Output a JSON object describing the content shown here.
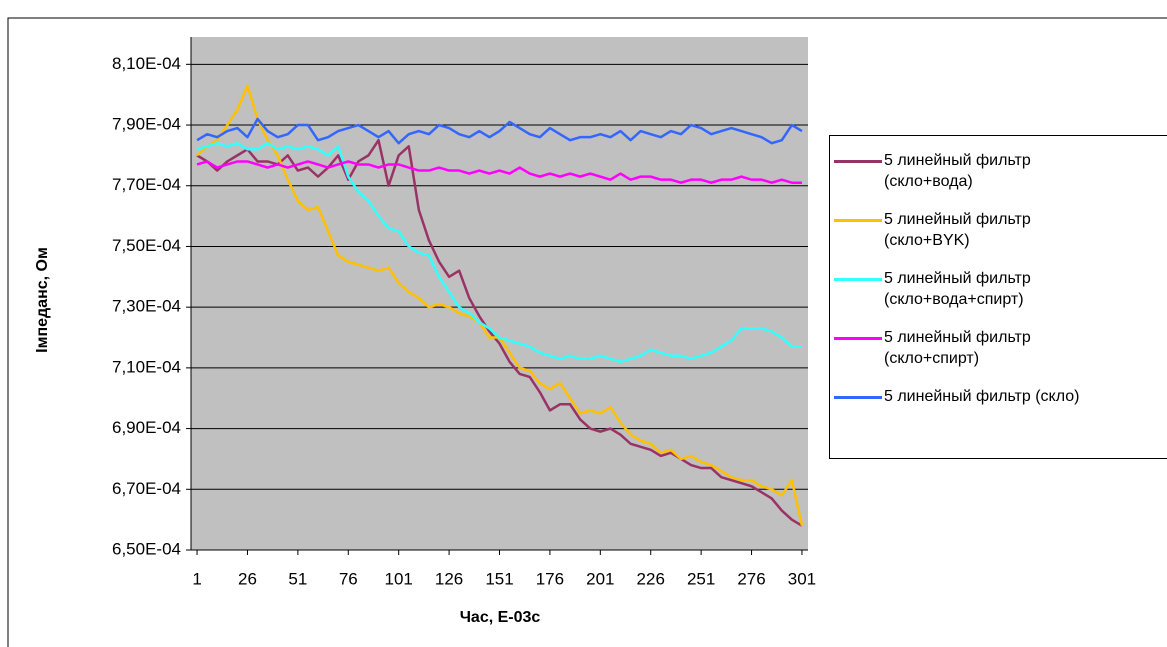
{
  "chart_data": {
    "type": "line",
    "x_label": "Час, Е-03с",
    "y_label": "Імпеданс, Ом",
    "x": [
      1,
      6,
      11,
      16,
      21,
      26,
      31,
      36,
      41,
      46,
      51,
      56,
      61,
      66,
      71,
      76,
      81,
      86,
      91,
      96,
      101,
      106,
      111,
      116,
      121,
      126,
      131,
      136,
      141,
      146,
      151,
      156,
      161,
      166,
      171,
      176,
      181,
      186,
      191,
      196,
      201,
      206,
      211,
      216,
      221,
      226,
      231,
      236,
      241,
      246,
      251,
      256,
      261,
      266,
      271,
      276,
      281,
      286,
      291,
      296,
      301
    ],
    "xlim": [
      -2,
      304
    ],
    "xticks": [
      1,
      26,
      51,
      76,
      101,
      126,
      151,
      176,
      201,
      226,
      251,
      276,
      301
    ],
    "ylim": [
      0.00065,
      0.000819
    ],
    "yticks": [
      {
        "value": 0.00065,
        "label": "6,50E-04"
      },
      {
        "value": 0.00067,
        "label": "6,70E-04"
      },
      {
        "value": 0.00069,
        "label": "6,90E-04"
      },
      {
        "value": 0.00071,
        "label": "7,10E-04"
      },
      {
        "value": 0.00073,
        "label": "7,30E-04"
      },
      {
        "value": 0.00075,
        "label": "7,50E-04"
      },
      {
        "value": 0.00077,
        "label": "7,70E-04"
      },
      {
        "value": 0.00079,
        "label": "7,90E-04"
      },
      {
        "value": 0.00081,
        "label": "8,10E-04"
      }
    ],
    "grid": true,
    "legend": "right",
    "series": [
      {
        "name": "5 линейный фильтр (скло+вода)",
        "color": "#993366",
        "values": [
          0.00078,
          0.000778,
          0.000775,
          0.000778,
          0.00078,
          0.000782,
          0.000778,
          0.000778,
          0.000777,
          0.00078,
          0.000775,
          0.000776,
          0.000773,
          0.000776,
          0.00078,
          0.000772,
          0.000778,
          0.00078,
          0.000785,
          0.00077,
          0.00078,
          0.000783,
          0.000762,
          0.000752,
          0.000745,
          0.00074,
          0.000742,
          0.000733,
          0.000727,
          0.000722,
          0.000718,
          0.000712,
          0.000708,
          0.000707,
          0.000702,
          0.000696,
          0.000698,
          0.000698,
          0.000693,
          0.00069,
          0.000689,
          0.00069,
          0.000688,
          0.000685,
          0.000684,
          0.000683,
          0.000681,
          0.000682,
          0.00068,
          0.000678,
          0.000677,
          0.000677,
          0.000674,
          0.000673,
          0.000672,
          0.000671,
          0.000669,
          0.000667,
          0.000663,
          0.00066,
          0.000658
        ]
      },
      {
        "name": "5 линейный фильтр (скло+BYK)",
        "color": "#FFC000",
        "values": [
          0.00078,
          0.000783,
          0.000785,
          0.00079,
          0.000795,
          0.000803,
          0.000792,
          0.000785,
          0.00078,
          0.000772,
          0.000765,
          0.000762,
          0.000763,
          0.000755,
          0.000747,
          0.000745,
          0.000744,
          0.000743,
          0.000742,
          0.000743,
          0.000738,
          0.000735,
          0.000733,
          0.00073,
          0.000731,
          0.00073,
          0.000728,
          0.000727,
          0.000725,
          0.00072,
          0.00072,
          0.000715,
          0.00071,
          0.000709,
          0.000705,
          0.000703,
          0.000705,
          0.0007,
          0.000695,
          0.000696,
          0.000695,
          0.000697,
          0.000692,
          0.000688,
          0.000686,
          0.000685,
          0.000682,
          0.000683,
          0.00068,
          0.000681,
          0.000679,
          0.000678,
          0.000676,
          0.000674,
          0.000673,
          0.000673,
          0.000671,
          0.00067,
          0.000668,
          0.000673,
          0.000658
        ]
      },
      {
        "name": "5 линейный фильтр (скло+вода+спирт)",
        "color": "#33FFFF",
        "values": [
          0.000782,
          0.000783,
          0.000784,
          0.000783,
          0.000784,
          0.000782,
          0.000782,
          0.000784,
          0.000782,
          0.000783,
          0.000782,
          0.000783,
          0.000782,
          0.00078,
          0.000783,
          0.000773,
          0.000768,
          0.000765,
          0.00076,
          0.000756,
          0.000755,
          0.00075,
          0.000748,
          0.000747,
          0.00074,
          0.000735,
          0.00073,
          0.000728,
          0.000725,
          0.000723,
          0.00072,
          0.000719,
          0.000718,
          0.000717,
          0.000715,
          0.000714,
          0.000713,
          0.000714,
          0.000713,
          0.000713,
          0.000714,
          0.000713,
          0.000712,
          0.000713,
          0.000714,
          0.000716,
          0.000715,
          0.000714,
          0.000714,
          0.000713,
          0.000714,
          0.000715,
          0.000717,
          0.000719,
          0.000723,
          0.000723,
          0.000723,
          0.000722,
          0.00072,
          0.000717,
          0.000717
        ]
      },
      {
        "name": "5 линейный фильтр (скло+спирт)",
        "color": "#FF00FF",
        "values": [
          0.000777,
          0.000778,
          0.000776,
          0.000777,
          0.000778,
          0.000778,
          0.000777,
          0.000776,
          0.000777,
          0.000776,
          0.000777,
          0.000778,
          0.000777,
          0.000776,
          0.000777,
          0.000778,
          0.000777,
          0.000777,
          0.000776,
          0.000777,
          0.000777,
          0.000776,
          0.000775,
          0.000775,
          0.000776,
          0.000775,
          0.000775,
          0.000774,
          0.000775,
          0.000774,
          0.000775,
          0.000774,
          0.000776,
          0.000774,
          0.000773,
          0.000774,
          0.000773,
          0.000774,
          0.000773,
          0.000774,
          0.000773,
          0.000772,
          0.000774,
          0.000772,
          0.000773,
          0.000773,
          0.000772,
          0.000772,
          0.000771,
          0.000772,
          0.000772,
          0.000771,
          0.000772,
          0.000772,
          0.000773,
          0.000772,
          0.000772,
          0.000771,
          0.000772,
          0.000771,
          0.000771
        ]
      },
      {
        "name": "5 линейный фильтр (скло)",
        "color": "#3366FF",
        "values": [
          0.000785,
          0.000787,
          0.000786,
          0.000788,
          0.000789,
          0.000786,
          0.000792,
          0.000788,
          0.000786,
          0.000787,
          0.00079,
          0.00079,
          0.000785,
          0.000786,
          0.000788,
          0.000789,
          0.00079,
          0.000788,
          0.000786,
          0.000788,
          0.000784,
          0.000787,
          0.000788,
          0.000787,
          0.00079,
          0.000789,
          0.000787,
          0.000786,
          0.000788,
          0.000786,
          0.000788,
          0.000791,
          0.000789,
          0.000787,
          0.000786,
          0.000789,
          0.000787,
          0.000785,
          0.000786,
          0.000786,
          0.000787,
          0.000786,
          0.000788,
          0.000785,
          0.000788,
          0.000787,
          0.000786,
          0.000788,
          0.000787,
          0.00079,
          0.000789,
          0.000787,
          0.000788,
          0.000789,
          0.000788,
          0.000787,
          0.000786,
          0.000784,
          0.000785,
          0.00079,
          0.000788
        ]
      }
    ]
  }
}
